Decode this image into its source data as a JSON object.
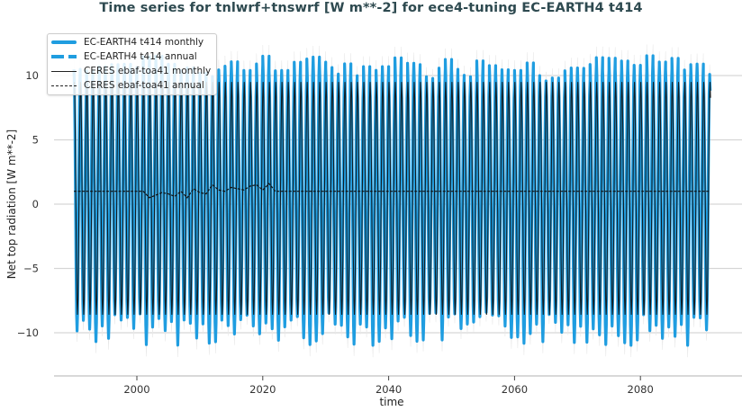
{
  "title": "Time series for tnlwrf+tnswrf [W m**-2] for ece4-tuning EC-EARTH4 t414",
  "axes": {
    "xlabel": "time",
    "ylabel": "Net top radiation [W m**-2]",
    "xticks": [
      "2000",
      "2020",
      "2040",
      "2060",
      "2080"
    ],
    "yticks": [
      "10",
      "5",
      "0",
      "−5",
      "−10"
    ]
  },
  "legend": {
    "items": [
      {
        "label": "EC-EARTH4 t414 monthly",
        "color": "#1f9de0",
        "style": "thick-solid"
      },
      {
        "label": "EC-EARTH4 t414 annual",
        "color": "#1f9de0",
        "style": "thick-dashed"
      },
      {
        "label": "CERES ebaf-toa41 monthly",
        "color": "#111111",
        "style": "thin-solid"
      },
      {
        "label": "CERES ebaf-toa41 annual",
        "color": "#111111",
        "style": "thin-dashed"
      }
    ]
  },
  "colors": {
    "model": "#1f9de0",
    "obs": "#111111",
    "grid": "#d6d6d6",
    "title": "#2e4a50"
  },
  "chart_data": {
    "type": "line",
    "title": "Time series for tnlwrf+tnswrf [W m**-2] for ece4-tuning EC-EARTH4 t414",
    "xlabel": "time",
    "ylabel": "Net top radiation [W m**-2]",
    "xlim": [
      1988,
      2095
    ],
    "ylim": [
      -13,
      13
    ],
    "grid": true,
    "legend_position": "upper left",
    "series": [
      {
        "name": "EC-EARTH4 t414 monthly",
        "description": "seasonal cycle oscillating roughly between -11 and +10.5 W m**-2, 1990-2091",
        "x_range": [
          1990,
          2091
        ],
        "amplitude_min": -11.5,
        "amplitude_max": 11.0,
        "mean": 1.0
      },
      {
        "name": "EC-EARTH4 t414 annual",
        "description": "annual mean approx 1.0 W m**-2 (hidden under monthly)",
        "x_range": [
          1990,
          2091
        ],
        "value": 1.0
      },
      {
        "name": "CERES ebaf-toa41 monthly",
        "description": "repeated climatological seasonal cycle between about -9 and +9.5 W m**-2",
        "x_range": [
          1990,
          2091
        ],
        "amplitude_min": -9.0,
        "amplitude_max": 9.5
      },
      {
        "name": "CERES ebaf-toa41 annual",
        "x": [
          1990,
          2001,
          2002,
          2003,
          2004,
          2005,
          2006,
          2007,
          2008,
          2009,
          2010,
          2011,
          2012,
          2013,
          2014,
          2015,
          2016,
          2017,
          2018,
          2019,
          2020,
          2021,
          2022,
          2091
        ],
        "values": [
          1.0,
          1.0,
          0.5,
          0.7,
          0.9,
          0.8,
          0.6,
          1.0,
          0.5,
          1.2,
          0.9,
          0.8,
          1.5,
          1.1,
          1.0,
          1.3,
          1.2,
          1.1,
          1.4,
          1.5,
          1.1,
          1.6,
          1.0,
          1.0
        ]
      }
    ]
  }
}
